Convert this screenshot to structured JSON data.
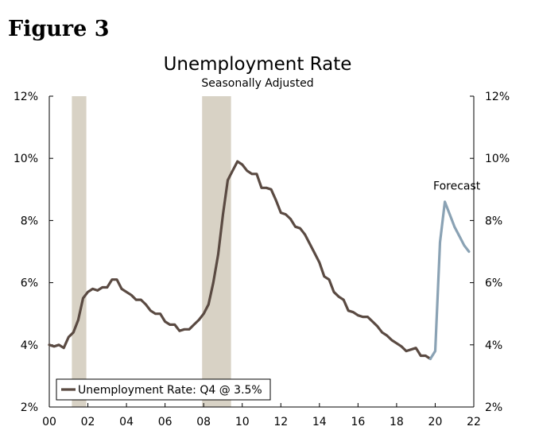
{
  "figure_label": "Figure 3",
  "chart_data": {
    "type": "line",
    "title": "Unemployment Rate",
    "subtitle": "Seasonally Adjusted",
    "xlim": [
      2000,
      2022
    ],
    "ylim": [
      2,
      12
    ],
    "x_ticks": [
      2000,
      2002,
      2004,
      2006,
      2008,
      2010,
      2012,
      2014,
      2016,
      2018,
      2020,
      2022
    ],
    "x_tick_labels": [
      "00",
      "02",
      "04",
      "06",
      "08",
      "10",
      "12",
      "14",
      "16",
      "18",
      "20",
      "22"
    ],
    "y_ticks": [
      2,
      4,
      6,
      8,
      10,
      12
    ],
    "y_tick_labels": [
      "2%",
      "4%",
      "6%",
      "8%",
      "10%",
      "12%"
    ],
    "left_y_axis": true,
    "right_y_axis": true,
    "grid": false,
    "recessions": [
      {
        "start": 2001.17,
        "end": 2001.92
      },
      {
        "start": 2007.92,
        "end": 2009.42
      }
    ],
    "annotations": [
      {
        "text": "Forecast",
        "x": 2019.9,
        "y": 9.0
      }
    ],
    "legend": {
      "placement": "bottom-left",
      "entries": [
        "Unemployment Rate: Q4 @ 3.5%"
      ]
    },
    "series": [
      {
        "name": "Unemployment Rate: Q4 @ 3.5%",
        "color": "#5a4a42",
        "x": [
          2000.0,
          2000.25,
          2000.5,
          2000.75,
          2001.0,
          2001.25,
          2001.5,
          2001.75,
          2002.0,
          2002.25,
          2002.5,
          2002.75,
          2003.0,
          2003.25,
          2003.5,
          2003.75,
          2004.0,
          2004.25,
          2004.5,
          2004.75,
          2005.0,
          2005.25,
          2005.5,
          2005.75,
          2006.0,
          2006.25,
          2006.5,
          2006.75,
          2007.0,
          2007.25,
          2007.5,
          2007.75,
          2008.0,
          2008.25,
          2008.5,
          2008.75,
          2009.0,
          2009.25,
          2009.5,
          2009.75,
          2010.0,
          2010.25,
          2010.5,
          2010.75,
          2011.0,
          2011.25,
          2011.5,
          2011.75,
          2012.0,
          2012.25,
          2012.5,
          2012.75,
          2013.0,
          2013.25,
          2013.5,
          2013.75,
          2014.0,
          2014.25,
          2014.5,
          2014.75,
          2015.0,
          2015.25,
          2015.5,
          2015.75,
          2016.0,
          2016.25,
          2016.5,
          2016.75,
          2017.0,
          2017.25,
          2017.5,
          2017.75,
          2018.0,
          2018.25,
          2018.5,
          2018.75,
          2019.0,
          2019.25,
          2019.5,
          2019.75
        ],
        "values": [
          4.0,
          3.95,
          4.0,
          3.9,
          4.25,
          4.4,
          4.8,
          5.5,
          5.7,
          5.8,
          5.75,
          5.85,
          5.85,
          6.1,
          6.1,
          5.8,
          5.7,
          5.6,
          5.45,
          5.45,
          5.3,
          5.1,
          5.0,
          5.0,
          4.75,
          4.65,
          4.65,
          4.45,
          4.5,
          4.5,
          4.65,
          4.8,
          5.0,
          5.3,
          6.0,
          6.9,
          8.2,
          9.3,
          9.6,
          9.9,
          9.8,
          9.6,
          9.5,
          9.5,
          9.05,
          9.05,
          9.0,
          8.65,
          8.25,
          8.2,
          8.05,
          7.8,
          7.75,
          7.55,
          7.25,
          6.95,
          6.65,
          6.2,
          6.1,
          5.7,
          5.55,
          5.45,
          5.1,
          5.05,
          4.95,
          4.9,
          4.9,
          4.75,
          4.6,
          4.4,
          4.3,
          4.15,
          4.05,
          3.95,
          3.8,
          3.85,
          3.9,
          3.65,
          3.65,
          3.55
        ]
      },
      {
        "name": "",
        "color": "#8aa2b4",
        "x": [
          2019.75,
          2020.0,
          2020.25,
          2020.5,
          2020.75,
          2021.0,
          2021.25,
          2021.5,
          2021.75
        ],
        "values": [
          3.55,
          3.8,
          7.3,
          8.6,
          8.2,
          7.8,
          7.5,
          7.2,
          7.0
        ]
      }
    ]
  }
}
